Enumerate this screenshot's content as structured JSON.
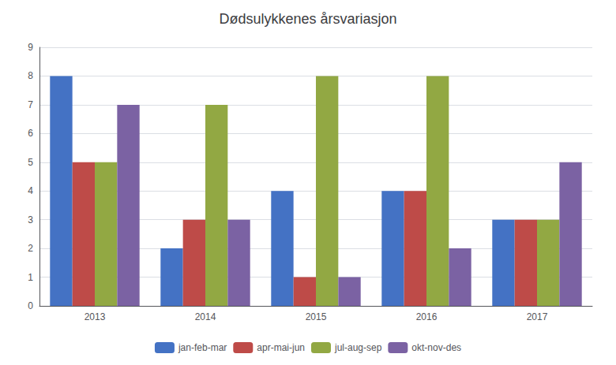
{
  "chart_data": {
    "type": "bar",
    "title": "Dødsulykkenes årsvariasjon",
    "categories": [
      "2013",
      "2014",
      "2015",
      "2016",
      "2017"
    ],
    "series": [
      {
        "name": "jan-feb-mar",
        "color": "#4472C4",
        "values": [
          8,
          2,
          4,
          4,
          3
        ]
      },
      {
        "name": "apr-mai-jun",
        "color": "#BE4B48",
        "values": [
          5,
          3,
          1,
          4,
          3
        ]
      },
      {
        "name": "jul-aug-sep",
        "color": "#92A843",
        "values": [
          5,
          7,
          8,
          8,
          3
        ]
      },
      {
        "name": "okt-nov-des",
        "color": "#7B62A3",
        "values": [
          7,
          3,
          1,
          2,
          5
        ]
      }
    ],
    "ylim": [
      0,
      9
    ],
    "yticks": [
      0,
      1,
      2,
      3,
      4,
      5,
      6,
      7,
      8,
      9
    ],
    "grid": true,
    "legend": "bottom"
  }
}
